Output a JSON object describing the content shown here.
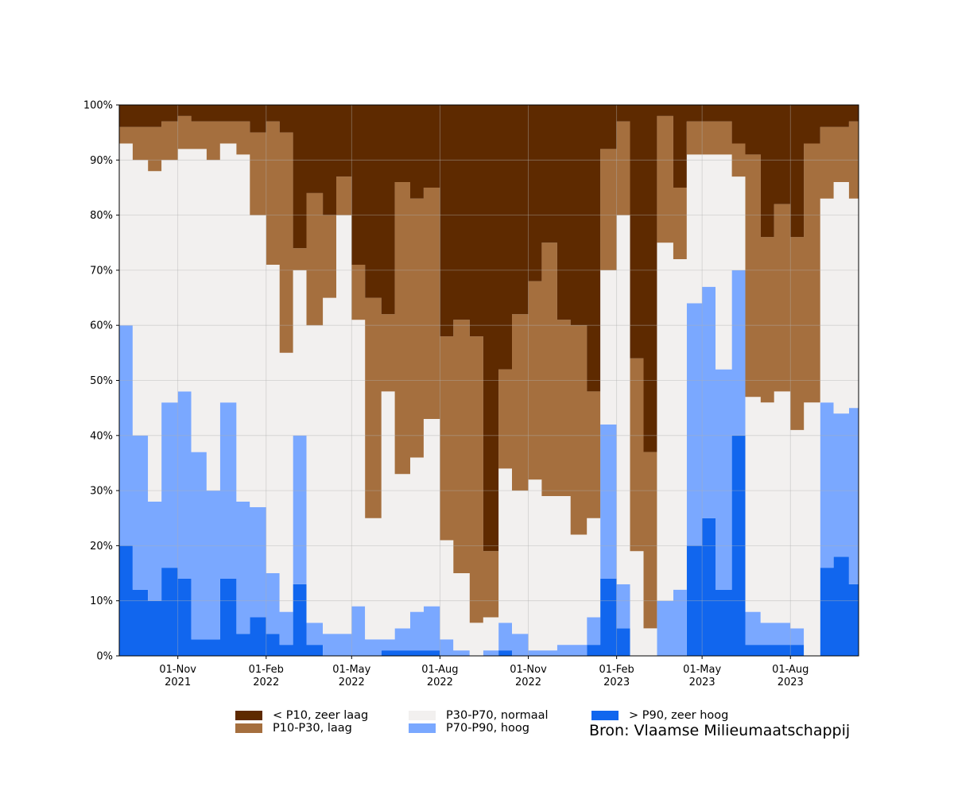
{
  "chart_data": {
    "type": "area",
    "stacked": true,
    "y_unit": "%",
    "ylim": [
      0,
      100
    ],
    "y_ticks": [
      "0%",
      "10%",
      "20%",
      "30%",
      "40%",
      "50%",
      "60%",
      "70%",
      "80%",
      "90%",
      "100%"
    ],
    "x_ticks": [
      {
        "date": "2021-11-01",
        "label_top": "01-Nov",
        "label_bottom": "2021"
      },
      {
        "date": "2022-02-01",
        "label_top": "01-Feb",
        "label_bottom": "2022"
      },
      {
        "date": "2022-05-01",
        "label_top": "01-May",
        "label_bottom": "2022"
      },
      {
        "date": "2022-08-01",
        "label_top": "01-Aug",
        "label_bottom": "2022"
      },
      {
        "date": "2022-11-01",
        "label_top": "01-Nov",
        "label_bottom": "2022"
      },
      {
        "date": "2023-02-01",
        "label_top": "01-Feb",
        "label_bottom": "2023"
      },
      {
        "date": "2023-05-01",
        "label_top": "01-May",
        "label_bottom": "2023"
      },
      {
        "date": "2023-08-01",
        "label_top": "01-Aug",
        "label_bottom": "2023"
      }
    ],
    "xlim": [
      "2021-09-01",
      "2023-10-11"
    ],
    "grid": true,
    "legend_position": "bottom",
    "x": [
      "2021-09-01",
      "2021-09-15",
      "2021-10-01",
      "2021-10-15",
      "2021-11-01",
      "2021-11-15",
      "2021-12-01",
      "2021-12-15",
      "2022-01-01",
      "2022-01-15",
      "2022-02-01",
      "2022-02-15",
      "2022-03-01",
      "2022-03-15",
      "2022-04-01",
      "2022-04-15",
      "2022-05-01",
      "2022-05-15",
      "2022-06-01",
      "2022-06-15",
      "2022-07-01",
      "2022-07-15",
      "2022-08-01",
      "2022-08-15",
      "2022-09-01",
      "2022-09-15",
      "2022-10-01",
      "2022-10-15",
      "2022-11-01",
      "2022-11-15",
      "2022-12-01",
      "2022-12-15",
      "2023-01-01",
      "2023-01-15",
      "2023-02-01",
      "2023-02-15",
      "2023-03-01",
      "2023-03-15",
      "2023-04-01",
      "2023-04-15",
      "2023-05-01",
      "2023-05-15",
      "2023-06-01",
      "2023-06-15",
      "2023-07-01",
      "2023-07-15",
      "2023-08-01",
      "2023-08-15",
      "2023-09-01",
      "2023-09-15",
      "2023-10-01",
      "2023-10-11"
    ],
    "series": [
      {
        "name": "> P90, zeer hoog",
        "color": "#1166ee",
        "values": [
          20,
          12,
          10,
          16,
          14,
          3,
          3,
          14,
          4,
          7,
          4,
          2,
          13,
          2,
          0,
          0,
          0,
          0,
          1,
          1,
          1,
          1,
          0,
          0,
          0,
          0,
          1,
          0,
          0,
          0,
          0,
          0,
          2,
          14,
          5,
          0,
          0,
          0,
          0,
          20,
          25,
          12,
          40,
          2,
          2,
          2,
          2,
          0,
          16,
          18,
          13,
          14
        ]
      },
      {
        "name": "P70-P90, hoog",
        "color": "#7aa8ff",
        "values": [
          40,
          28,
          18,
          30,
          34,
          34,
          27,
          32,
          24,
          20,
          11,
          6,
          27,
          4,
          4,
          4,
          9,
          3,
          2,
          4,
          7,
          8,
          3,
          1,
          0,
          1,
          5,
          4,
          1,
          1,
          2,
          2,
          5,
          28,
          8,
          0,
          0,
          10,
          12,
          44,
          42,
          40,
          30,
          6,
          4,
          4,
          3,
          0,
          30,
          26,
          32,
          33
        ]
      },
      {
        "name": "P30-P70, normaal",
        "color": "#f2f0ef",
        "values": [
          33,
          50,
          60,
          44,
          44,
          55,
          60,
          47,
          63,
          53,
          56,
          47,
          30,
          54,
          61,
          76,
          52,
          22,
          45,
          28,
          28,
          34,
          18,
          14,
          6,
          6,
          28,
          26,
          31,
          28,
          27,
          20,
          18,
          28,
          67,
          19,
          5,
          65,
          60,
          27,
          24,
          39,
          17,
          39,
          40,
          42,
          36,
          46,
          37,
          42,
          38,
          40
        ]
      },
      {
        "name": "P10-P30, laag",
        "color": "#a56f3e",
        "values": [
          3,
          6,
          8,
          7,
          6,
          5,
          7,
          4,
          6,
          15,
          26,
          40,
          4,
          24,
          15,
          7,
          10,
          40,
          14,
          53,
          47,
          42,
          37,
          46,
          52,
          12,
          18,
          32,
          36,
          46,
          32,
          38,
          23,
          22,
          17,
          35,
          32,
          23,
          13,
          6,
          6,
          6,
          6,
          44,
          30,
          34,
          35,
          47,
          13,
          10,
          14,
          13
        ]
      },
      {
        "name": "< P10, zeer laag",
        "color": "#5e2a00",
        "values": [
          4,
          4,
          4,
          3,
          2,
          3,
          3,
          3,
          3,
          5,
          3,
          5,
          26,
          16,
          20,
          13,
          29,
          35,
          38,
          14,
          17,
          15,
          42,
          39,
          42,
          81,
          48,
          38,
          32,
          25,
          39,
          40,
          52,
          8,
          3,
          46,
          63,
          2,
          15,
          3,
          3,
          3,
          7,
          9,
          24,
          18,
          24,
          7,
          4,
          4,
          3,
          3
        ]
      }
    ]
  },
  "source": "Bron: Vlaamse Milieumaatschappij"
}
